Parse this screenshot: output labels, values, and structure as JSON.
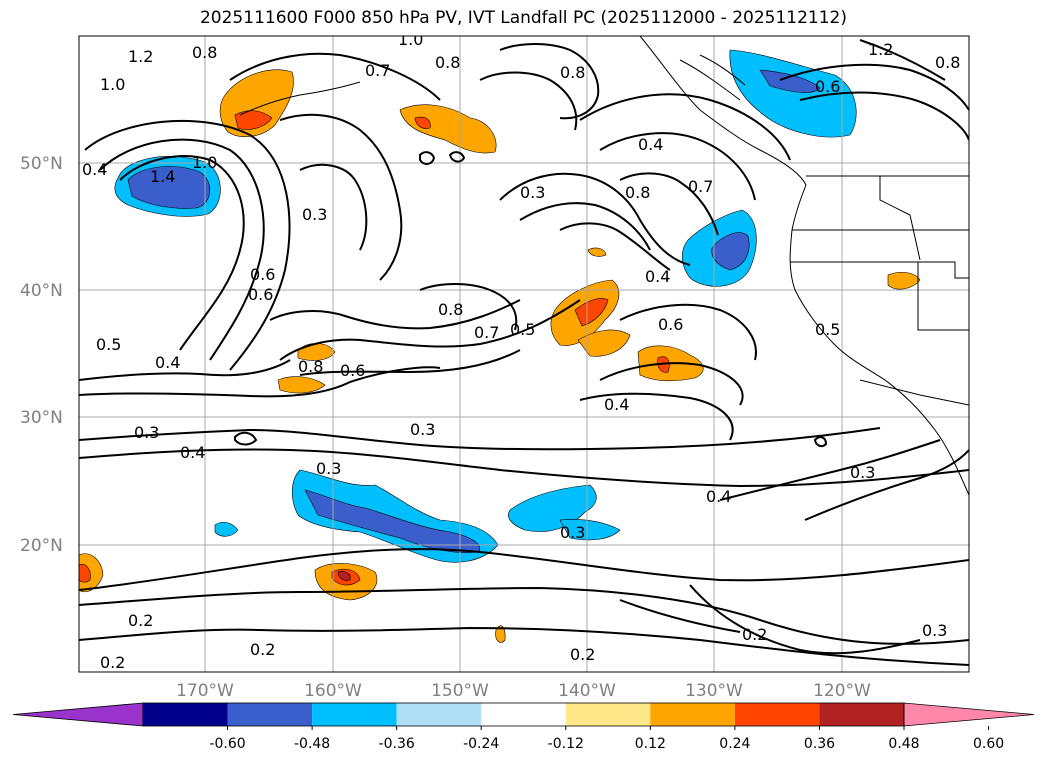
{
  "title": "2025111600 F000 850 hPa PV, IVT Landfall PC (2025112000 - 2025112112)",
  "lat_labels": [
    "50°N",
    "40°N",
    "30°N",
    "20°N"
  ],
  "lon_labels": [
    "170°W",
    "160°W",
    "150°W",
    "140°W",
    "130°W",
    "120°W"
  ],
  "contour_labels": [
    "1.2",
    "1.0",
    "0.8",
    "0.7",
    "1.0",
    "0.8",
    "0.8",
    "1.2",
    "0.8",
    "0.6",
    "0.4",
    "1.4",
    "1.0",
    "0.3",
    "0.3",
    "0.4",
    "0.6",
    "0.8",
    "0.7",
    "0.4",
    "0.6",
    "0.8",
    "0.7",
    "0.5",
    "0.5",
    "0.4",
    "0.8",
    "0.6",
    "0.3",
    "0.4",
    "0.3",
    "0.3",
    "0.4",
    "0.3",
    "0.2",
    "0.2",
    "0.2",
    "0.2",
    "0.3",
    "0.3",
    "0.2",
    "0.5",
    "0.6",
    "0.4"
  ],
  "colorbar": {
    "ticks": [
      "-0.60",
      "-0.48",
      "-0.36",
      "-0.24",
      "-0.12",
      "0.12",
      "0.24",
      "0.36",
      "0.48",
      "0.60"
    ],
    "colors": [
      "#9933cc",
      "#00008b",
      "#3a5fcd",
      "#00bfff",
      "#aedff7",
      "#ffffff",
      "#ffe88a",
      "#ffa500",
      "#ff4500",
      "#b22222",
      "#ff88aa"
    ]
  }
}
